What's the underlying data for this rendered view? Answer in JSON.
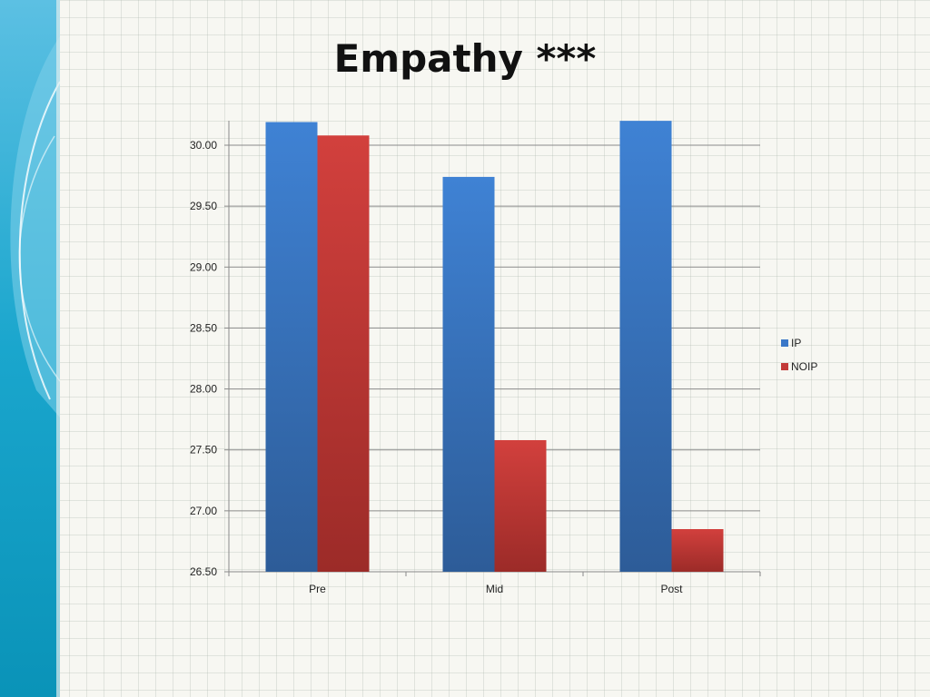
{
  "slide": {
    "title": "Empathy ***",
    "accent_colors": [
      "#0ea3c6",
      "#5bc4e0",
      "#b9e6f2"
    ]
  },
  "chart_data": {
    "type": "bar",
    "title": "Empathy ***",
    "categories": [
      "Pre",
      "Mid",
      "Post"
    ],
    "series": [
      {
        "name": "IP",
        "values": [
          30.19,
          29.74,
          30.2
        ],
        "color": "#3a78c8"
      },
      {
        "name": "NOIP",
        "values": [
          30.08,
          27.58,
          26.85
        ],
        "color": "#c23a38"
      }
    ],
    "ylim": [
      26.5,
      30.2
    ],
    "yticks": [
      "26.50",
      "27.00",
      "27.50",
      "28.00",
      "28.50",
      "29.00",
      "29.50",
      "30.00"
    ],
    "ytick_values": [
      26.5,
      27.0,
      27.5,
      28.0,
      28.5,
      29.0,
      29.5,
      30.0
    ],
    "xlabel": "",
    "ylabel": "",
    "grid": true,
    "legend_position": "right"
  }
}
